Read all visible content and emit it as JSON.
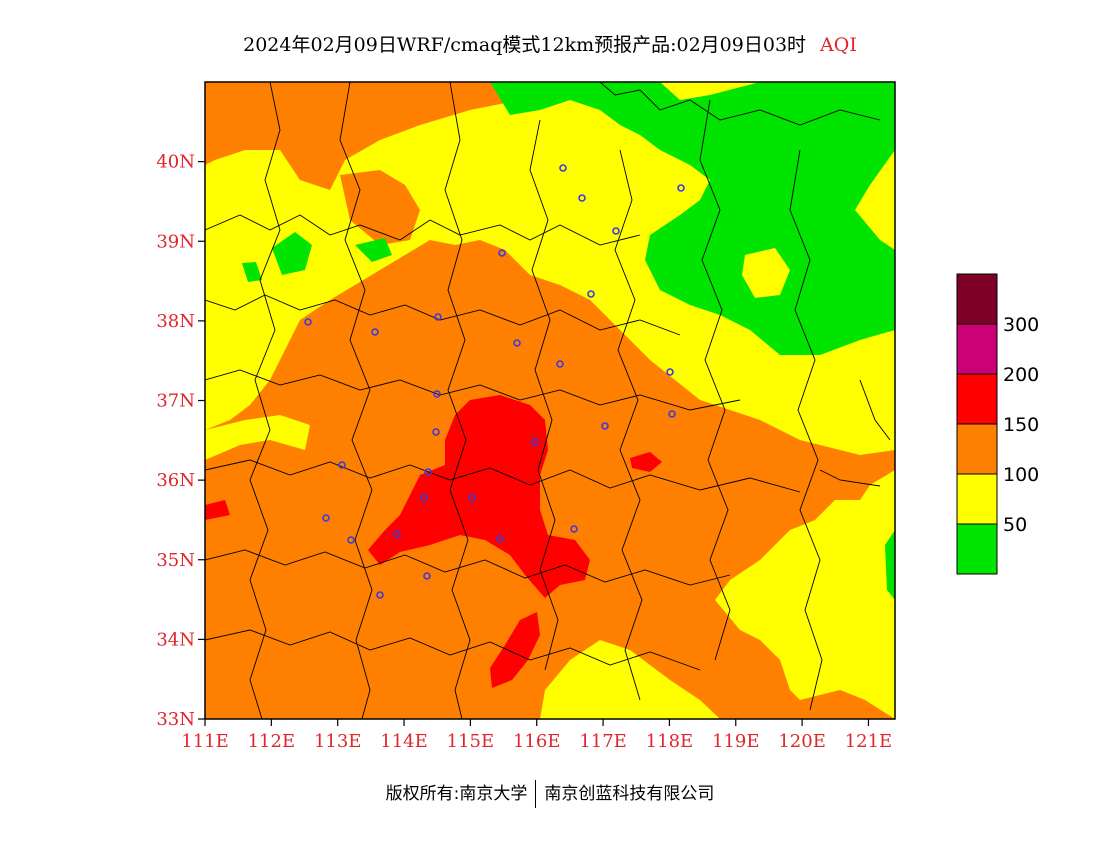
{
  "title": {
    "main": "2024年02月09日WRF/cmaq模式12km预报产品:02月09日03时",
    "variable": "AQI"
  },
  "footer": {
    "left": "版权所有:南京大学",
    "right": "南京创蓝科技有限公司"
  },
  "map": {
    "lat_ticks": [
      "40N",
      "39N",
      "38N",
      "37N",
      "36N",
      "35N",
      "34N",
      "33N"
    ],
    "lon_ticks": [
      "111E",
      "112E",
      "113E",
      "114E",
      "115E",
      "116E",
      "117E",
      "118E",
      "119E",
      "120E",
      "121E"
    ],
    "lat_range": [
      33,
      41
    ],
    "lon_range": [
      111,
      121.4
    ]
  },
  "legend": {
    "levels": [
      {
        "label": "",
        "color": "#7f0026"
      },
      {
        "label": "300",
        "color": "#cc0077"
      },
      {
        "label": "200",
        "color": "#ff0000"
      },
      {
        "label": "150",
        "color": "#ff7f00"
      },
      {
        "label": "100",
        "color": "#ffff00"
      },
      {
        "label": "50",
        "color": "#00e400"
      }
    ]
  },
  "colors": {
    "good": "#00e400",
    "moderate": "#ffff00",
    "usg": "#ff7f00",
    "unhealthy": "#ff0000",
    "city_marker": "#3b3bdc"
  }
}
